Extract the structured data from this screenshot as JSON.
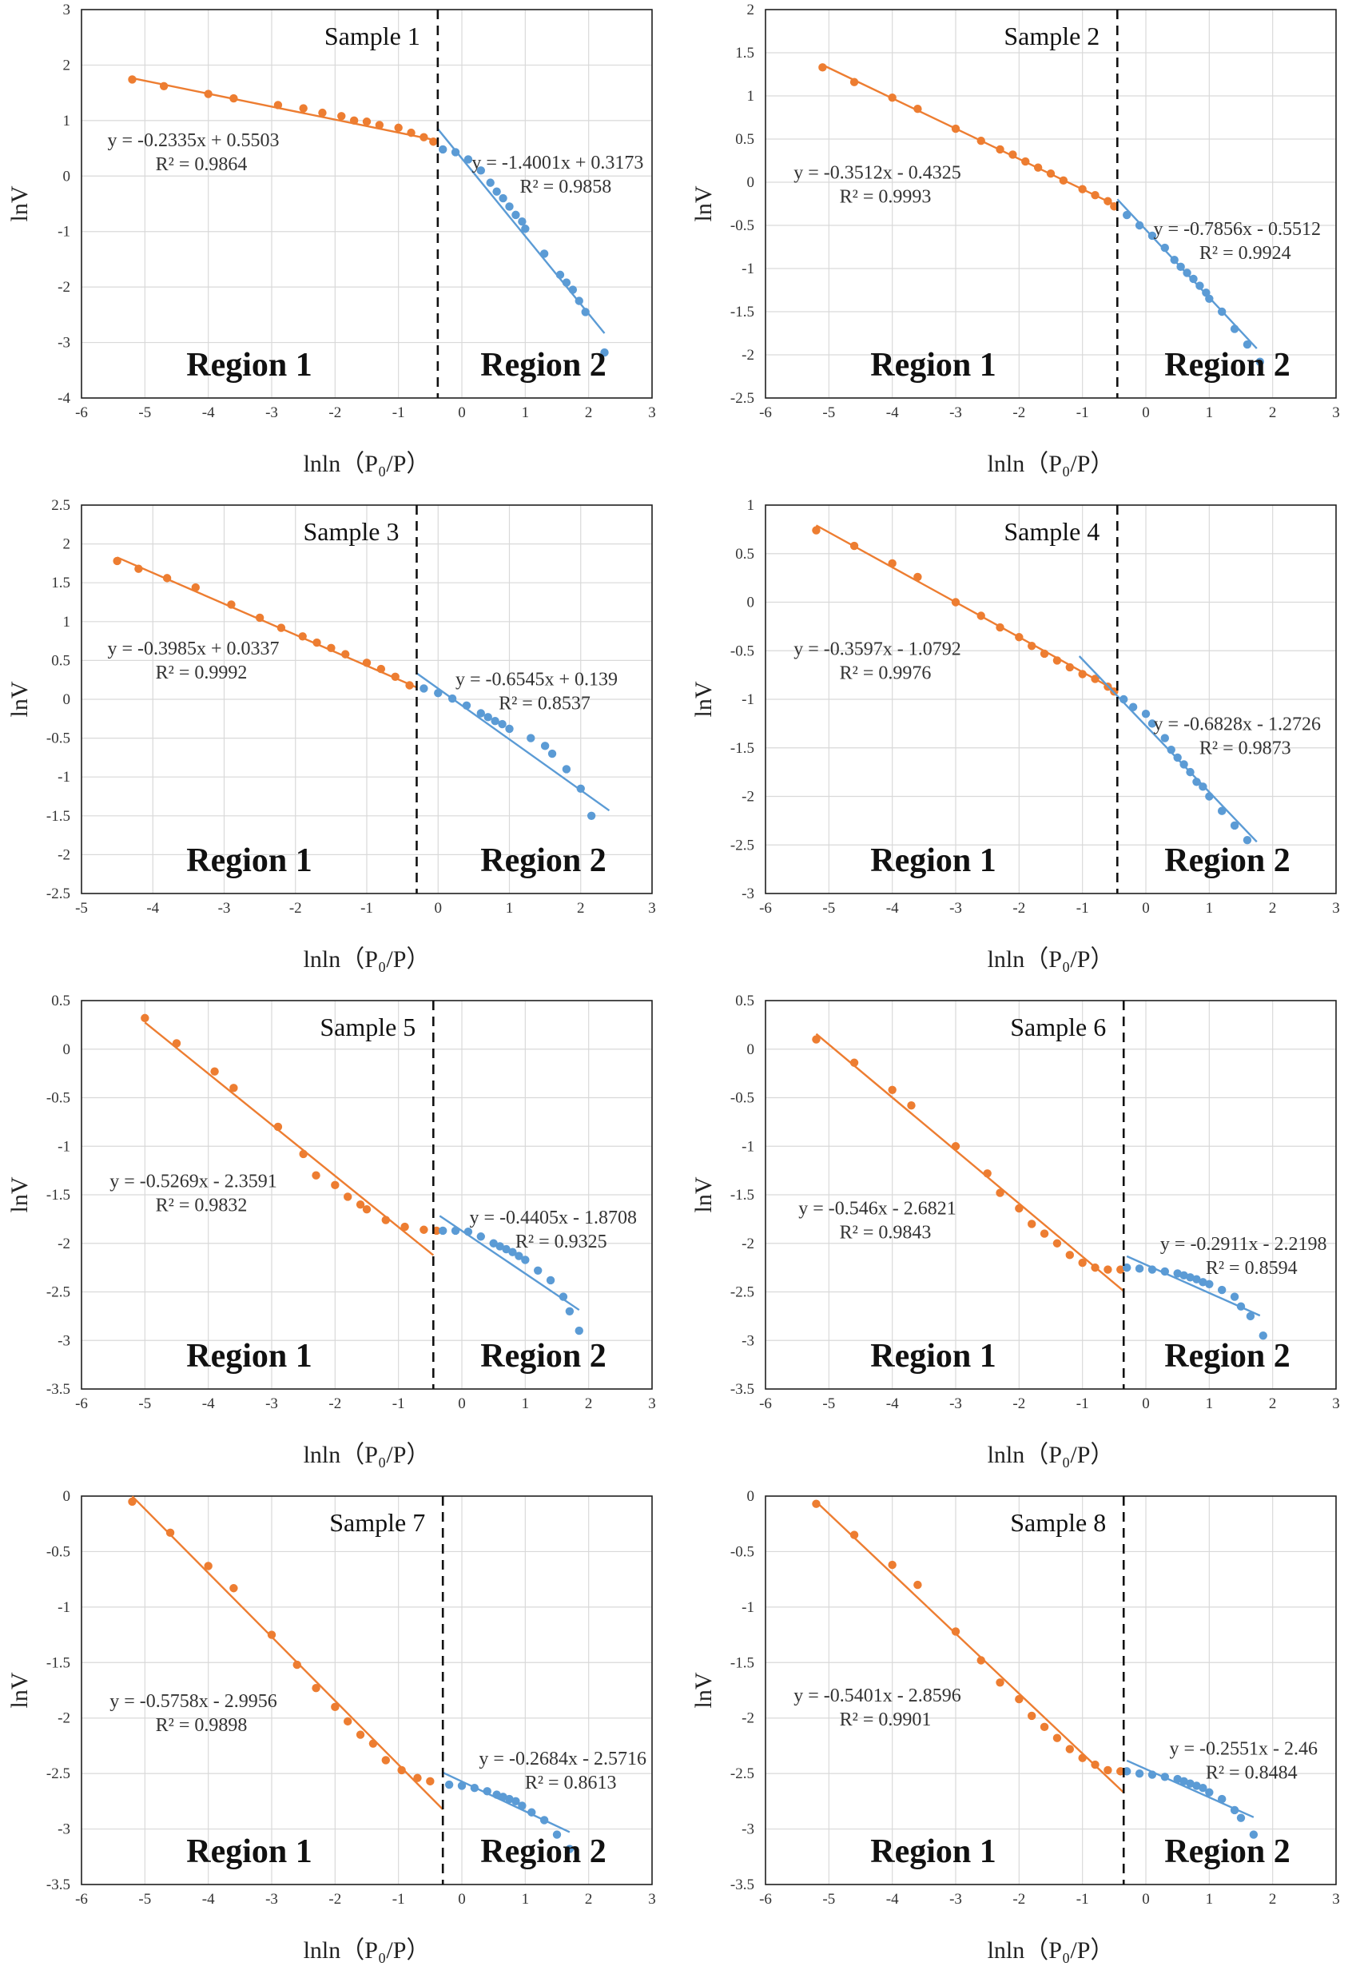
{
  "figure": {
    "xlabel": "lnln（P₀/P）",
    "ylabel": "lnV",
    "colors": {
      "region1": "#ED7D31",
      "region2": "#5B9BD5",
      "grid": "#d9d9d9",
      "divider": "#111111"
    }
  },
  "chart_data": [
    {
      "type": "scatter",
      "title": "Sample 1",
      "xlabel": "lnln（P₀/P）",
      "ylabel": "lnV",
      "xlim": [
        -6,
        3
      ],
      "ylim": [
        -4,
        3
      ],
      "xstep": 1,
      "ystep": 1,
      "divider_x": -0.38,
      "region_labels": [
        "Region 1",
        "Region 2"
      ],
      "series": [
        {
          "name": "Region 1",
          "color": "#ED7D31",
          "x": [
            -5.2,
            -4.7,
            -4.0,
            -3.6,
            -2.9,
            -2.5,
            -2.2,
            -1.9,
            -1.7,
            -1.5,
            -1.3,
            -1.0,
            -0.8,
            -0.6,
            -0.45
          ],
          "y": [
            1.74,
            1.62,
            1.48,
            1.4,
            1.28,
            1.22,
            1.14,
            1.08,
            1.0,
            0.98,
            0.92,
            0.87,
            0.78,
            0.7,
            0.62
          ],
          "fit": {
            "slope": -0.2335,
            "intercept": 0.5503,
            "x_range": [
              -5.2,
              -0.38
            ],
            "equation": "y = -0.2335x + 0.5503",
            "r2": "R² = 0.9864"
          }
        },
        {
          "name": "Region 2",
          "color": "#5B9BD5",
          "x": [
            -0.3,
            -0.1,
            0.1,
            0.3,
            0.45,
            0.55,
            0.65,
            0.75,
            0.85,
            0.95,
            1.0,
            1.3,
            1.55,
            1.65,
            1.75,
            1.85,
            1.95,
            2.25
          ],
          "y": [
            0.48,
            0.43,
            0.3,
            0.1,
            -0.12,
            -0.28,
            -0.4,
            -0.55,
            -0.7,
            -0.82,
            -0.95,
            -1.4,
            -1.78,
            -1.92,
            -2.05,
            -2.25,
            -2.45,
            -3.18
          ],
          "fit": {
            "slope": -1.4001,
            "intercept": 0.3173,
            "x_range": [
              -0.38,
              2.25
            ],
            "equation": "y = -1.4001x + 0.3173",
            "r2": "R² = 0.9858"
          }
        }
      ]
    },
    {
      "type": "scatter",
      "title": "Sample 2",
      "xlabel": "lnln（P₀/P）",
      "ylabel": "lnV",
      "xlim": [
        -6,
        3
      ],
      "ylim": [
        -2.5,
        2
      ],
      "xstep": 1,
      "ystep": 0.5,
      "divider_x": -0.45,
      "region_labels": [
        "Region 1",
        "Region 2"
      ],
      "series": [
        {
          "name": "Region 1",
          "color": "#ED7D31",
          "x": [
            -5.1,
            -4.6,
            -4.0,
            -3.6,
            -3.0,
            -2.6,
            -2.3,
            -2.1,
            -1.9,
            -1.7,
            -1.5,
            -1.3,
            -1.0,
            -0.8,
            -0.6,
            -0.5
          ],
          "y": [
            1.33,
            1.16,
            0.98,
            0.85,
            0.62,
            0.48,
            0.38,
            0.32,
            0.24,
            0.17,
            0.1,
            0.02,
            -0.08,
            -0.15,
            -0.22,
            -0.28
          ],
          "fit": {
            "slope": -0.3512,
            "intercept": -0.4325,
            "x_range": [
              -5.1,
              -0.45
            ],
            "equation": "y = -0.3512x - 0.4325",
            "r2": "R² = 0.9993"
          }
        },
        {
          "name": "Region 2",
          "color": "#5B9BD5",
          "x": [
            -0.3,
            -0.1,
            0.1,
            0.3,
            0.45,
            0.55,
            0.65,
            0.75,
            0.85,
            0.95,
            1.0,
            1.2,
            1.4,
            1.6,
            1.8
          ],
          "y": [
            -0.38,
            -0.5,
            -0.62,
            -0.76,
            -0.9,
            -0.98,
            -1.05,
            -1.12,
            -1.2,
            -1.28,
            -1.35,
            -1.5,
            -1.7,
            -1.88,
            -2.08
          ],
          "fit": {
            "slope": -0.7856,
            "intercept": -0.5512,
            "x_range": [
              -0.45,
              1.75
            ],
            "equation": "y = -0.7856x - 0.5512",
            "r2": "R² = 0.9924"
          }
        }
      ]
    },
    {
      "type": "scatter",
      "title": "Sample 3",
      "xlabel": "lnln（P₀/P）",
      "ylabel": "lnV",
      "xlim": [
        -5,
        3
      ],
      "ylim": [
        -2.5,
        2.5
      ],
      "xstep": 1,
      "ystep": 0.5,
      "divider_x": -0.3,
      "region_labels": [
        "Region 1",
        "Region 2"
      ],
      "series": [
        {
          "name": "Region 1",
          "color": "#ED7D31",
          "x": [
            -4.5,
            -4.2,
            -3.8,
            -3.4,
            -2.9,
            -2.5,
            -2.2,
            -1.9,
            -1.7,
            -1.5,
            -1.3,
            -1.0,
            -0.8,
            -0.6,
            -0.4
          ],
          "y": [
            1.78,
            1.68,
            1.56,
            1.44,
            1.22,
            1.05,
            0.92,
            0.81,
            0.73,
            0.66,
            0.58,
            0.47,
            0.39,
            0.29,
            0.18
          ],
          "fit": {
            "slope": -0.3985,
            "intercept": 0.0337,
            "x_range": [
              -4.5,
              -0.3
            ],
            "equation": "y = -0.3985x + 0.0337",
            "r2": "R² = 0.9992"
          }
        },
        {
          "name": "Region 2",
          "color": "#5B9BD5",
          "x": [
            -0.2,
            0.0,
            0.2,
            0.4,
            0.6,
            0.7,
            0.8,
            0.9,
            1.0,
            1.3,
            1.5,
            1.6,
            1.8,
            2.0,
            2.15
          ],
          "y": [
            0.14,
            0.08,
            0.01,
            -0.08,
            -0.18,
            -0.23,
            -0.28,
            -0.32,
            -0.38,
            -0.5,
            -0.6,
            -0.7,
            -0.9,
            -1.15,
            -1.5
          ],
          "fit": {
            "slope": -0.6545,
            "intercept": 0.139,
            "x_range": [
              -0.3,
              2.4
            ],
            "equation": "y = -0.6545x + 0.139",
            "r2": "R² = 0.8537"
          }
        }
      ]
    },
    {
      "type": "scatter",
      "title": "Sample 4",
      "xlabel": "lnln（P₀/P）",
      "ylabel": "lnV",
      "xlim": [
        -6,
        3
      ],
      "ylim": [
        -3,
        1
      ],
      "xstep": 1,
      "ystep": 0.5,
      "divider_x": -0.45,
      "region_labels": [
        "Region 1",
        "Region 2"
      ],
      "series": [
        {
          "name": "Region 1",
          "color": "#ED7D31",
          "x": [
            -5.2,
            -4.6,
            -4.0,
            -3.6,
            -3.0,
            -2.6,
            -2.3,
            -2.0,
            -1.8,
            -1.6,
            -1.4,
            -1.2,
            -1.0,
            -0.8,
            -0.6,
            -0.5
          ],
          "y": [
            0.74,
            0.58,
            0.4,
            0.26,
            0.0,
            -0.14,
            -0.26,
            -0.36,
            -0.45,
            -0.53,
            -0.6,
            -0.67,
            -0.74,
            -0.79,
            -0.87,
            -0.92
          ],
          "fit": {
            "slope": -0.3597,
            "intercept": -1.0792,
            "x_range": [
              -5.2,
              -0.45
            ],
            "equation": "y = -0.3597x - 1.0792",
            "r2": "R² = 0.9976"
          }
        },
        {
          "name": "Region 2",
          "color": "#5B9BD5",
          "x": [
            -0.35,
            -0.2,
            0.0,
            0.1,
            0.3,
            0.4,
            0.5,
            0.6,
            0.7,
            0.8,
            0.9,
            1.0,
            1.2,
            1.4,
            1.6
          ],
          "y": [
            -1.0,
            -1.08,
            -1.15,
            -1.25,
            -1.4,
            -1.52,
            -1.6,
            -1.67,
            -1.75,
            -1.85,
            -1.9,
            -2.0,
            -2.15,
            -2.3,
            -2.45
          ],
          "fit": {
            "slope": -0.6828,
            "intercept": -1.2726,
            "x_range": [
              -1.05,
              1.75
            ],
            "equation": "y = -0.6828x - 1.2726",
            "r2": "R² = 0.9873"
          }
        }
      ]
    },
    {
      "type": "scatter",
      "title": "Sample 5",
      "xlabel": "lnln（P₀/P）",
      "ylabel": "lnV",
      "xlim": [
        -6,
        3
      ],
      "ylim": [
        -3.5,
        0.5
      ],
      "xstep": 1,
      "ystep": 0.5,
      "divider_x": -0.45,
      "region_labels": [
        "Region 1",
        "Region 2"
      ],
      "series": [
        {
          "name": "Region 1",
          "color": "#ED7D31",
          "x": [
            -5.0,
            -4.5,
            -3.9,
            -3.6,
            -2.9,
            -2.5,
            -2.3,
            -2.0,
            -1.8,
            -1.6,
            -1.5,
            -1.2,
            -0.9,
            -0.6,
            -0.4
          ],
          "y": [
            0.32,
            0.06,
            -0.23,
            -0.4,
            -0.8,
            -1.08,
            -1.3,
            -1.4,
            -1.52,
            -1.6,
            -1.65,
            -1.76,
            -1.83,
            -1.86,
            -1.87
          ],
          "fit": {
            "slope": -0.5269,
            "intercept": -2.3591,
            "x_range": [
              -5.0,
              -0.45
            ],
            "equation": "y = -0.5269x - 2.3591",
            "r2": "R² = 0.9832"
          }
        },
        {
          "name": "Region 2",
          "color": "#5B9BD5",
          "x": [
            -0.3,
            -0.1,
            0.1,
            0.3,
            0.5,
            0.6,
            0.7,
            0.8,
            0.9,
            1.0,
            1.2,
            1.4,
            1.6,
            1.7,
            1.85
          ],
          "y": [
            -1.87,
            -1.87,
            -1.88,
            -1.93,
            -2.0,
            -2.03,
            -2.06,
            -2.09,
            -2.13,
            -2.17,
            -2.28,
            -2.38,
            -2.55,
            -2.7,
            -2.9
          ],
          "fit": {
            "slope": -0.4405,
            "intercept": -1.8708,
            "x_range": [
              -0.35,
              1.85
            ],
            "equation": "y = -0.4405x - 1.8708",
            "r2": "R² = 0.9325"
          }
        }
      ]
    },
    {
      "type": "scatter",
      "title": "Sample 6",
      "xlabel": "lnln（P₀/P）",
      "ylabel": "lnV",
      "xlim": [
        -6,
        3
      ],
      "ylim": [
        -3.5,
        0.5
      ],
      "xstep": 1,
      "ystep": 0.5,
      "divider_x": -0.35,
      "region_labels": [
        "Region 1",
        "Region 2"
      ],
      "series": [
        {
          "name": "Region 1",
          "color": "#ED7D31",
          "x": [
            -5.2,
            -4.6,
            -4.0,
            -3.7,
            -3.0,
            -2.5,
            -2.3,
            -2.0,
            -1.8,
            -1.6,
            -1.4,
            -1.2,
            -1.0,
            -0.8,
            -0.6,
            -0.4
          ],
          "y": [
            0.1,
            -0.14,
            -0.42,
            -0.58,
            -1.0,
            -1.28,
            -1.48,
            -1.64,
            -1.8,
            -1.9,
            -2.0,
            -2.12,
            -2.2,
            -2.25,
            -2.27,
            -2.27
          ],
          "fit": {
            "slope": -0.546,
            "intercept": -2.6821,
            "x_range": [
              -5.2,
              -0.35
            ],
            "equation": "y = -0.546x - 2.6821",
            "r2": "R² = 0.9843"
          }
        },
        {
          "name": "Region 2",
          "color": "#5B9BD5",
          "x": [
            -0.3,
            -0.1,
            0.1,
            0.3,
            0.5,
            0.6,
            0.7,
            0.8,
            0.9,
            1.0,
            1.2,
            1.4,
            1.5,
            1.65,
            1.85
          ],
          "y": [
            -2.25,
            -2.26,
            -2.27,
            -2.29,
            -2.31,
            -2.33,
            -2.35,
            -2.37,
            -2.4,
            -2.42,
            -2.48,
            -2.55,
            -2.65,
            -2.75,
            -2.95
          ],
          "fit": {
            "slope": -0.2911,
            "intercept": -2.2198,
            "x_range": [
              -0.3,
              1.8
            ],
            "equation": "y = -0.2911x - 2.2198",
            "r2": "R² = 0.8594"
          }
        }
      ]
    },
    {
      "type": "scatter",
      "title": "Sample 7",
      "xlabel": "lnln（P₀/P）",
      "ylabel": "lnV",
      "xlim": [
        -6,
        3
      ],
      "ylim": [
        -3.5,
        0
      ],
      "xstep": 1,
      "ystep": 0.5,
      "divider_x": -0.3,
      "region_labels": [
        "Region 1",
        "Region 2"
      ],
      "series": [
        {
          "name": "Region 1",
          "color": "#ED7D31",
          "x": [
            -5.2,
            -4.6,
            -4.0,
            -3.6,
            -3.0,
            -2.6,
            -2.3,
            -2.0,
            -1.8,
            -1.6,
            -1.4,
            -1.2,
            -0.95,
            -0.7,
            -0.5
          ],
          "y": [
            -0.05,
            -0.33,
            -0.63,
            -0.83,
            -1.25,
            -1.52,
            -1.73,
            -1.9,
            -2.03,
            -2.15,
            -2.23,
            -2.38,
            -2.47,
            -2.54,
            -2.57
          ],
          "fit": {
            "slope": -0.5758,
            "intercept": -2.9956,
            "x_range": [
              -5.2,
              -0.3
            ],
            "equation": "y = -0.5758x - 2.9956",
            "r2": "R² = 0.9898"
          }
        },
        {
          "name": "Region 2",
          "color": "#5B9BD5",
          "x": [
            -0.2,
            0.0,
            0.2,
            0.4,
            0.55,
            0.65,
            0.75,
            0.85,
            0.95,
            1.1,
            1.3,
            1.5,
            1.7
          ],
          "y": [
            -2.6,
            -2.61,
            -2.63,
            -2.66,
            -2.69,
            -2.71,
            -2.73,
            -2.75,
            -2.79,
            -2.85,
            -2.92,
            -3.05,
            -3.18
          ],
          "fit": {
            "slope": -0.2684,
            "intercept": -2.5716,
            "x_range": [
              -0.3,
              1.7
            ],
            "equation": "y = -0.2684x - 2.5716",
            "r2": "R² = 0.8613"
          }
        }
      ]
    },
    {
      "type": "scatter",
      "title": "Sample 8",
      "xlabel": "lnln（P₀/P）",
      "ylabel": "lnV",
      "xlim": [
        -6,
        3
      ],
      "ylim": [
        -3.5,
        0
      ],
      "xstep": 1,
      "ystep": 0.5,
      "divider_x": -0.35,
      "region_labels": [
        "Region 1",
        "Region 2"
      ],
      "series": [
        {
          "name": "Region 1",
          "color": "#ED7D31",
          "x": [
            -5.2,
            -4.6,
            -4.0,
            -3.6,
            -3.0,
            -2.6,
            -2.3,
            -2.0,
            -1.8,
            -1.6,
            -1.4,
            -1.2,
            -1.0,
            -0.8,
            -0.6,
            -0.4
          ],
          "y": [
            -0.07,
            -0.35,
            -0.62,
            -0.8,
            -1.22,
            -1.48,
            -1.68,
            -1.83,
            -1.98,
            -2.08,
            -2.18,
            -2.28,
            -2.36,
            -2.42,
            -2.47,
            -2.48
          ],
          "fit": {
            "slope": -0.5401,
            "intercept": -2.8596,
            "x_range": [
              -5.2,
              -0.35
            ],
            "equation": "y = -0.5401x - 2.8596",
            "r2": "R² = 0.9901"
          }
        },
        {
          "name": "Region 2",
          "color": "#5B9BD5",
          "x": [
            -0.3,
            -0.1,
            0.1,
            0.3,
            0.5,
            0.6,
            0.7,
            0.8,
            0.9,
            1.0,
            1.2,
            1.4,
            1.5,
            1.7
          ],
          "y": [
            -2.48,
            -2.5,
            -2.51,
            -2.53,
            -2.55,
            -2.57,
            -2.59,
            -2.61,
            -2.63,
            -2.67,
            -2.73,
            -2.83,
            -2.9,
            -3.05
          ],
          "fit": {
            "slope": -0.2551,
            "intercept": -2.46,
            "x_range": [
              -0.3,
              1.7
            ],
            "equation": "y = -0.2551x - 2.46",
            "r2": "R² = 0.8484"
          }
        }
      ]
    }
  ]
}
